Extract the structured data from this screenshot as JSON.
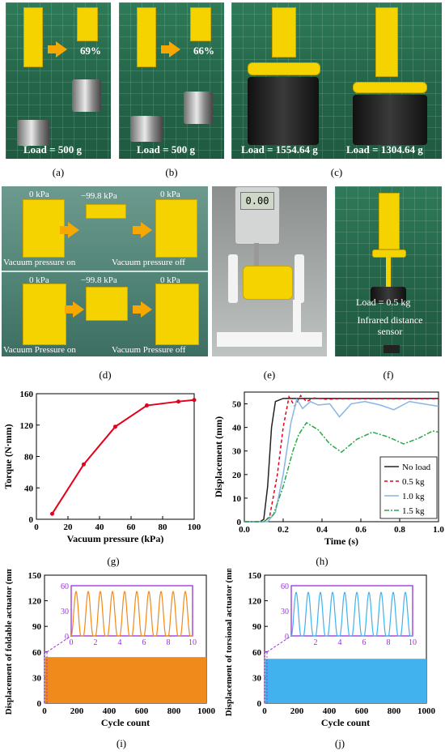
{
  "labels": {
    "a": "(a)",
    "b": "(b)",
    "c": "(c)",
    "d": "(d)",
    "e": "(e)",
    "f": "(f)",
    "g": "(g)",
    "h": "(h)",
    "i": "(i)",
    "j": "(j)"
  },
  "photos": {
    "a": {
      "percent": "69%",
      "load": "Load = 500 g"
    },
    "b": {
      "percent": "66%",
      "load": "Load = 500 g"
    },
    "c": {
      "load_left": "Load = 1554.64 g",
      "load_right": "Load = 1304.64 g"
    },
    "d": {
      "p0": "0 kPa",
      "p1": "−99.8 kPa",
      "p2": "0 kPa",
      "p3": "0 kPa",
      "p4": "−99.8 kPa",
      "p5": "0 kPa",
      "on1": "Vacuum pressure on",
      "off1": "Vacuum pressure off",
      "on2": "Vacuum Pressure on",
      "off2": "Vacuum Pressure off"
    },
    "e": {
      "display": "0.00"
    },
    "f": {
      "load": "Load = 0.5 kg",
      "sensor": "Infrared distance sensor"
    }
  },
  "chart_data": [
    {
      "id": "g",
      "type": "line",
      "xlabel": "Vacuum pressure (kPa)",
      "ylabel": "Torque (N·mm)",
      "xlim": [
        0,
        100
      ],
      "ylim": [
        0,
        160
      ],
      "xticks": [
        0,
        20,
        40,
        60,
        80,
        100
      ],
      "yticks": [
        0,
        40,
        80,
        120,
        160
      ],
      "color": "#e3001b",
      "x": [
        10,
        30,
        50,
        70,
        90,
        100
      ],
      "y": [
        7,
        70,
        118,
        145,
        150,
        152
      ]
    },
    {
      "id": "h",
      "type": "line",
      "xlabel": "Time (s)",
      "ylabel": "Displacement (mm)",
      "xlim": [
        0,
        1.0
      ],
      "ylim": [
        0,
        55
      ],
      "xticks": [
        0.0,
        0.2,
        0.4,
        0.6,
        0.8,
        1.0
      ],
      "yticks": [
        0,
        10,
        20,
        30,
        40,
        50
      ],
      "legend": "bottom-right",
      "series": [
        {
          "name": "No load",
          "color": "#222222",
          "dash": "",
          "x": [
            0,
            0.08,
            0.1,
            0.12,
            0.14,
            0.16,
            0.2,
            0.3,
            0.5,
            1.0
          ],
          "y": [
            0,
            0,
            1,
            15,
            40,
            51,
            52.3,
            52.3,
            52.3,
            52.3
          ]
        },
        {
          "name": "0.5 kg",
          "color": "#e3001b",
          "dash": "4,3",
          "x": [
            0,
            0.1,
            0.13,
            0.17,
            0.2,
            0.23,
            0.26,
            0.29,
            0.32,
            0.36,
            0.42,
            0.5,
            1.0
          ],
          "y": [
            0,
            0,
            2,
            20,
            40,
            53,
            49,
            53.5,
            51,
            52.5,
            52,
            52.2,
            52.2
          ]
        },
        {
          "name": "1.0 kg",
          "color": "#86b6e6",
          "dash": "",
          "x": [
            0,
            0.12,
            0.16,
            0.2,
            0.24,
            0.27,
            0.3,
            0.34,
            0.38,
            0.44,
            0.49,
            0.55,
            0.62,
            0.7,
            0.77,
            0.85,
            0.92,
            1.0
          ],
          "y": [
            0,
            0,
            4,
            20,
            42,
            52,
            48,
            51,
            49.5,
            50,
            44.5,
            50,
            51,
            49.5,
            47.5,
            51,
            50,
            49
          ]
        },
        {
          "name": "1.5 kg",
          "color": "#2aa74a",
          "dash": "6,2,2,2",
          "x": [
            0,
            0.1,
            0.15,
            0.2,
            0.25,
            0.28,
            0.32,
            0.38,
            0.44,
            0.5,
            0.58,
            0.66,
            0.74,
            0.82,
            0.9,
            0.97,
            1.0
          ],
          "y": [
            0,
            0,
            3,
            15,
            30,
            37,
            42,
            39,
            33,
            29.5,
            35,
            38,
            36,
            33,
            35.5,
            38.5,
            38
          ]
        }
      ]
    },
    {
      "id": "i",
      "type": "area",
      "xlabel": "Cycle count",
      "ylabel": "Displacement of foldable actuator (mm)",
      "xlim": [
        0,
        1000
      ],
      "ylim": [
        0,
        150
      ],
      "xticks": [
        0,
        200,
        400,
        600,
        800,
        1000
      ],
      "yticks": [
        0,
        30,
        60,
        90,
        120,
        150
      ],
      "color": "#f08a1a",
      "band_max": 54,
      "inset": {
        "xlim": [
          0,
          10
        ],
        "ylim": [
          0,
          60
        ],
        "xticks": [
          0,
          2,
          4,
          6,
          8,
          10
        ],
        "yticks": [
          0,
          30,
          60
        ],
        "period": 1,
        "amplitude": 53,
        "color": "#f08a1a",
        "frame": "#9b30d9"
      }
    },
    {
      "id": "j",
      "type": "area",
      "xlabel": "Cycle count",
      "ylabel": "Displacement of torsional actuator (mm)",
      "xlim": [
        0,
        1000
      ],
      "ylim": [
        0,
        150
      ],
      "xticks": [
        0,
        200,
        400,
        600,
        800,
        1000
      ],
      "yticks": [
        0,
        30,
        60,
        90,
        120,
        150
      ],
      "color": "#41b2ee",
      "band_max": 52,
      "inset": {
        "xlim": [
          0,
          10
        ],
        "ylim": [
          0,
          60
        ],
        "xticks": [
          2,
          4,
          6,
          8,
          10
        ],
        "yticks": [
          0,
          30,
          60
        ],
        "period": 1,
        "amplitude": 52,
        "color": "#41b2ee",
        "frame": "#9b30d9"
      }
    }
  ]
}
